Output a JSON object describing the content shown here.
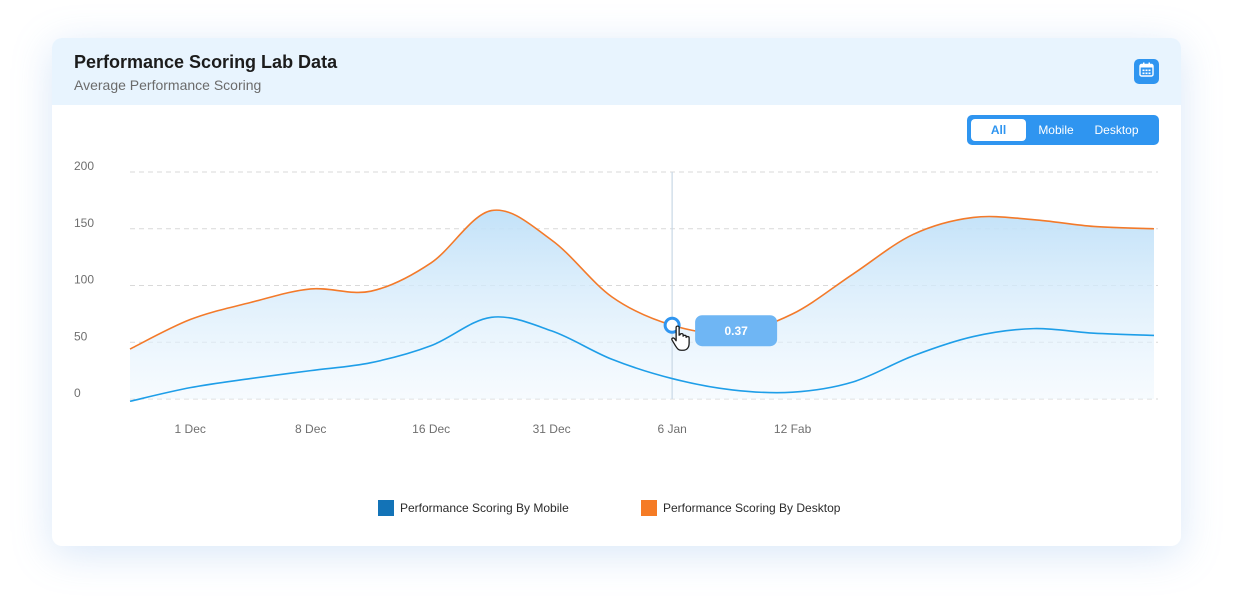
{
  "header": {
    "title": "Performance Scoring Lab Data",
    "subtitle": "Average Performance Scoring"
  },
  "icons": {
    "calendar": "calendar-icon",
    "cursor": "hand-pointer-icon"
  },
  "filter": {
    "options": [
      "All",
      "Mobile",
      "Desktop"
    ],
    "selected": "All"
  },
  "tooltip": {
    "value": "0.37"
  },
  "colors": {
    "accent": "#2f95f0",
    "mobile_line": "#1e9ee8",
    "desktop_line": "#f37a2a",
    "legend_mobile": "#1373b7",
    "legend_desktop": "#f57b25"
  },
  "chart_data": {
    "type": "line",
    "ylim": [
      0,
      200
    ],
    "yticks": [
      0,
      50,
      100,
      150,
      200
    ],
    "x_tick_labels": [
      "1 Dec",
      "8 Dec",
      "16 Dec",
      "31 Dec",
      "6 Jan",
      "12 Fab"
    ],
    "x_tick_index": [
      1,
      3,
      5,
      7,
      9,
      11
    ],
    "grid": true,
    "legend_position": "bottom-center",
    "hover_index": 9,
    "series": [
      {
        "name": "Performance Scoring By Mobile",
        "values": [
          -2,
          10,
          18,
          25,
          32,
          47,
          72,
          60,
          35,
          18,
          8,
          6,
          15,
          38,
          55,
          62,
          58,
          56
        ]
      },
      {
        "name": "Performance Scoring By Desktop",
        "values": [
          44,
          70,
          85,
          97,
          95,
          120,
          166,
          140,
          90,
          65,
          58,
          75,
          110,
          145,
          160,
          158,
          152,
          150
        ]
      }
    ]
  }
}
